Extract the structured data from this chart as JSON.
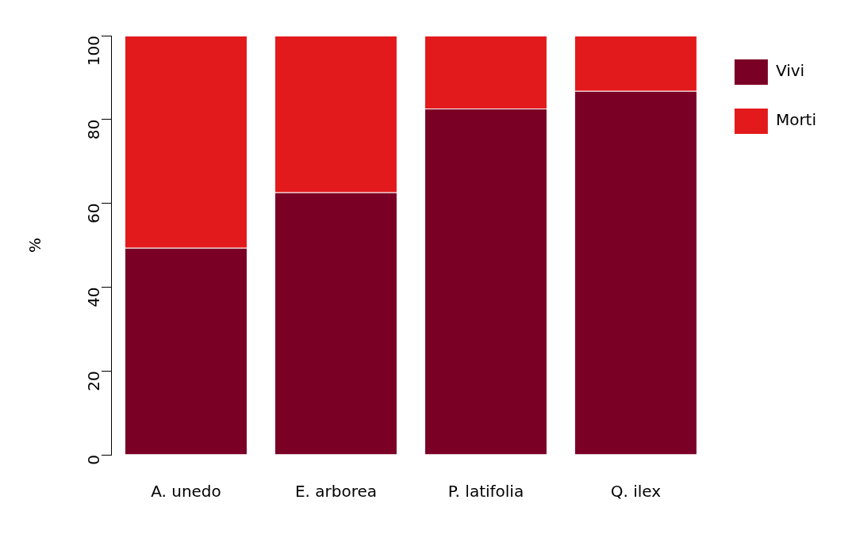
{
  "chart_data": {
    "type": "bar",
    "stacked": true,
    "ylabel": "%",
    "categories": [
      "A. unedo",
      "E. arborea",
      "P. latifolia",
      "Q. ilex"
    ],
    "series": [
      {
        "name": "Vivi",
        "color": "#7b0026",
        "values": [
          49.4,
          62.6,
          82.6,
          86.8
        ]
      },
      {
        "name": "Morti",
        "color": "#e31a1c",
        "values": [
          50.6,
          37.4,
          17.4,
          13.2
        ]
      }
    ],
    "ylim": [
      0,
      100
    ],
    "yticks": [
      0,
      20,
      40,
      60,
      80,
      100
    ],
    "grid": false,
    "legend": "top right"
  }
}
